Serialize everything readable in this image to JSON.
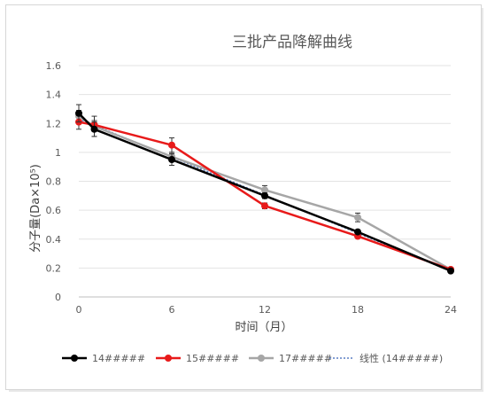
{
  "chart_data": {
    "type": "line",
    "title": "三批产品降解曲线",
    "xlabel": "时间（月）",
    "ylabel": "分子量(Da×10⁵)",
    "x": [
      0,
      1,
      6,
      12,
      18,
      24
    ],
    "x_ticks": [
      "0",
      "6",
      "12",
      "18",
      "24"
    ],
    "y_ticks": [
      "0",
      "0.2",
      "0.4",
      "0.6",
      "0.8",
      "1",
      "1.2",
      "1.4",
      "1.6"
    ],
    "xlim": [
      0,
      24
    ],
    "ylim": [
      0,
      1.6
    ],
    "grid": true,
    "legend_position": "bottom",
    "series": [
      {
        "name": "14#####",
        "color": "#000000",
        "x": [
          0,
          1,
          6,
          12,
          18,
          24
        ],
        "values": [
          1.27,
          1.16,
          0.95,
          0.7,
          0.45,
          0.18
        ],
        "errors": [
          0.06,
          0.05,
          0.04,
          0.02,
          0.01,
          0.01
        ]
      },
      {
        "name": "15#####",
        "color": "#e81a1a",
        "x": [
          0,
          1,
          6,
          12,
          18,
          24
        ],
        "values": [
          1.21,
          1.19,
          1.05,
          0.63,
          0.42,
          0.19
        ],
        "errors": [
          0.05,
          0.03,
          0.05,
          0.02,
          0.01,
          0.01
        ]
      },
      {
        "name": "17#####",
        "color": "#a6a6a6",
        "x": [
          0,
          1,
          6,
          12,
          18,
          24
        ],
        "values": [
          1.25,
          1.18,
          0.97,
          0.74,
          0.55,
          0.19
        ],
        "errors": [
          0.04,
          0.07,
          0.03,
          0.03,
          0.03,
          0.01
        ]
      }
    ],
    "trendline": {
      "name": "线性 (14#####)",
      "color": "#5b7fc4",
      "style": "dotted",
      "of_series": "14#####"
    }
  }
}
